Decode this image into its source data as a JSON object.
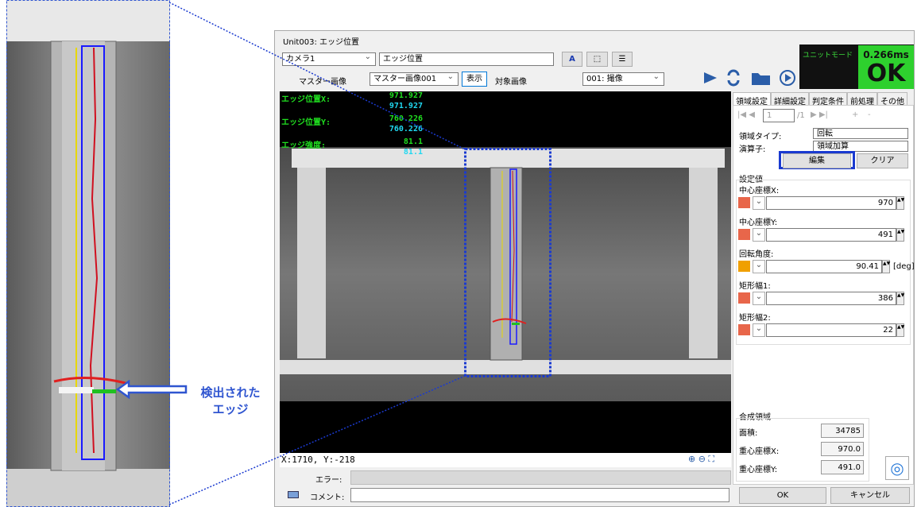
{
  "callout": {
    "line1": "検出された",
    "line2": "エッジ"
  },
  "window": {
    "title": "Unit003: エッジ位置",
    "toolbar": {
      "camera": "カメラ1",
      "unit_name": "エッジ位置",
      "master_label": "マスター画像",
      "master_image": "マスター画像001",
      "show_button": "表示",
      "target_label": "対象画像",
      "target_image": "001: 撮像"
    },
    "status": {
      "mode": "ユニットモード",
      "time": "0.266ms",
      "result": "OK"
    },
    "overlay": [
      {
        "label": "エッジ位置X:",
        "value": "971.927",
        "value2": "971.927"
      },
      {
        "label": "エッジ位置Y:",
        "value": "760.226",
        "value2": "760.226"
      },
      {
        "label": "エッジ強度:",
        "value": "81.1",
        "value2": "81.1"
      }
    ],
    "coords": "X:1710, Y:-218",
    "error_label": "エラー:",
    "comment_label": "コメント:",
    "tabs": [
      "領域設定",
      "詳細設定",
      "判定条件",
      "前処理",
      "その他"
    ],
    "nav": {
      "page": "1",
      "total": "/1",
      "add": "+",
      "remove": "-"
    },
    "region": {
      "type_label": "領域タイプ:",
      "type_value": "回転",
      "op_label": "演算子:",
      "op_value": "領域加算",
      "edit_button": "編集",
      "clear_button": "クリア"
    },
    "settings": {
      "title": "設定値",
      "fields": [
        {
          "label": "中心座標X:",
          "value": "970"
        },
        {
          "label": "中心座標Y:",
          "value": "491"
        },
        {
          "label": "回転角度:",
          "value": "90.41",
          "unit": "[deg]"
        },
        {
          "label": "矩形幅1:",
          "value": "386"
        },
        {
          "label": "矩形幅2:",
          "value": "22"
        }
      ]
    },
    "composite": {
      "title": "合成領域",
      "fields": [
        {
          "label": "面積:",
          "value": "34785"
        },
        {
          "label": "重心座標X:",
          "value": "970.0"
        },
        {
          "label": "重心座標Y:",
          "value": "491.0"
        }
      ]
    },
    "buttons": {
      "ok": "OK",
      "cancel": "キャンセル"
    }
  }
}
